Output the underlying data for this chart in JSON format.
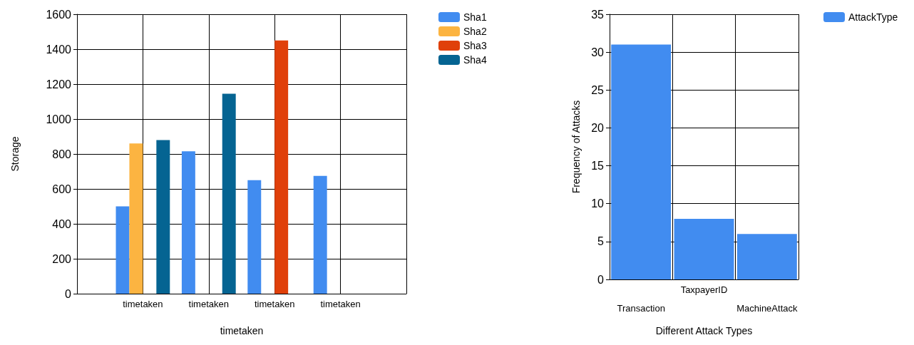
{
  "chart_data": [
    {
      "type": "bar",
      "xlabel": "timetaken",
      "ylabel": "Storage",
      "categories": [
        "timetaken",
        "timetaken",
        "timetaken",
        "timetaken"
      ],
      "series": [
        {
          "name": "Sha1",
          "color": "#418cf0",
          "values": [
            500,
            815,
            650,
            675
          ]
        },
        {
          "name": "Sha2",
          "color": "#fcb441",
          "values": [
            860,
            null,
            null,
            null
          ]
        },
        {
          "name": "Sha3",
          "color": "#e0400a",
          "values": [
            null,
            null,
            1450,
            null
          ]
        },
        {
          "name": "Sha4",
          "color": "#056492",
          "values": [
            880,
            1145,
            null,
            null
          ]
        }
      ],
      "ylim": [
        0,
        1600
      ],
      "yticks": [
        0,
        200,
        400,
        600,
        800,
        1000,
        1200,
        1400,
        1600
      ],
      "grid": true,
      "legend": "top right"
    },
    {
      "type": "bar",
      "xlabel": "Different Attack Types",
      "ylabel": "Frequency of Attacks",
      "categories": [
        "Transaction",
        "TaxpayerID",
        "MachineAttack"
      ],
      "series": [
        {
          "name": "AttackType",
          "color": "#418cf0",
          "values": [
            31,
            8,
            6
          ]
        }
      ],
      "ylim": [
        0,
        35
      ],
      "yticks": [
        0,
        5,
        10,
        15,
        20,
        25,
        30,
        35
      ],
      "grid": true,
      "legend": "top right"
    }
  ]
}
